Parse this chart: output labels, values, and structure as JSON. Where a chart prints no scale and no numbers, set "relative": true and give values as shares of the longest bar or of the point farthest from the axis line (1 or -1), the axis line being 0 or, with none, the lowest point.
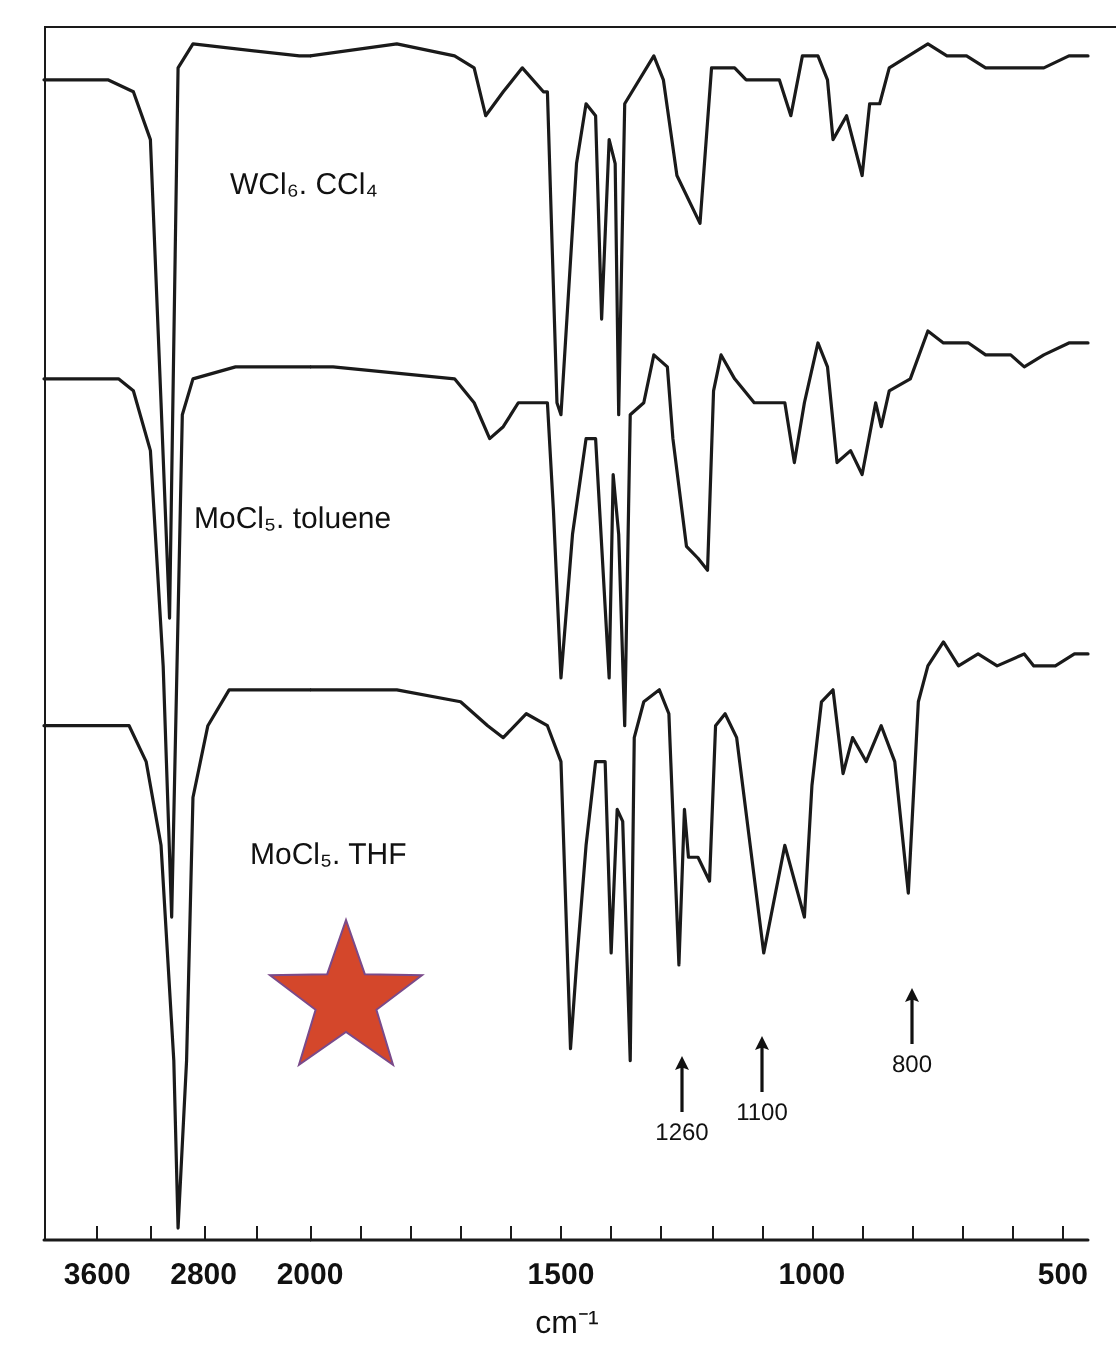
{
  "chart_data": [
    {
      "type": "line",
      "relative": true,
      "marker": "none",
      "xlim": [
        4000,
        2000
      ],
      "xticks": [
        3600,
        {
          "value": 3200,
          "label": null
        },
        2800,
        {
          "value": 2400,
          "label": null
        },
        2000
      ],
      "series": [
        {
          "name": "WCl₆. CCl₄",
          "color": "#1a1a1a",
          "x": [
            4000,
            3520,
            3328,
            3200,
            3120,
            3056,
            2992,
            2880,
            2080,
            2000
          ],
          "values": [
            0.97,
            0.97,
            0.96,
            0.92,
            0.7,
            0.52,
            0.98,
            1.0,
            0.99,
            0.99
          ]
        },
        {
          "name": "MoCl₅. toluene",
          "color": "#1a1a1a",
          "x": [
            4000,
            3792,
            3440,
            3328,
            3200,
            3104,
            3040,
            2960,
            2880,
            2560,
            2000
          ],
          "values": [
            0.72,
            0.72,
            0.72,
            0.71,
            0.66,
            0.48,
            0.27,
            0.69,
            0.72,
            0.73,
            0.73
          ]
        },
        {
          "name": "MoCl₅. THF",
          "color": "#1a1a1a",
          "x": [
            4000,
            3360,
            3232,
            3120,
            3024,
            2992,
            2928,
            2880,
            2768,
            2608,
            2000
          ],
          "values": [
            0.43,
            0.43,
            0.4,
            0.33,
            0.15,
            0.01,
            0.15,
            0.37,
            0.43,
            0.46,
            0.46
          ]
        }
      ]
    },
    {
      "type": "line",
      "relative": true,
      "marker": "none",
      "xlim": [
        2000,
        450
      ],
      "xlabel": "cm⁻¹",
      "xticks": [
        {
          "value": 1900,
          "label": null
        },
        {
          "value": 1800,
          "label": null
        },
        {
          "value": 1700,
          "label": null
        },
        {
          "value": 1600,
          "label": null
        },
        1500,
        {
          "value": 1400,
          "label": null
        },
        {
          "value": 1300,
          "label": null
        },
        {
          "value": 1200,
          "label": null
        },
        {
          "value": 1100,
          "label": null
        },
        1000,
        {
          "value": 900,
          "label": null
        },
        {
          "value": 800,
          "label": null
        },
        {
          "value": 700,
          "label": null
        },
        {
          "value": 600,
          "label": null
        },
        500
      ],
      "series": [
        {
          "color": "#1a1a1a",
          "x": [
            2000,
            1827,
            1712,
            1673,
            1650,
            1615,
            1577,
            1535,
            1527,
            1508,
            1500,
            1469,
            1450,
            1431,
            1419,
            1404,
            1392,
            1385,
            1373,
            1315,
            1296,
            1269,
            1223,
            1200,
            1154,
            1131,
            1065,
            1042,
            1019,
            988,
            969,
            958,
            931,
            900,
            885,
            865,
            846,
            769,
            731,
            692,
            654,
            615,
            538,
            488,
            450
          ],
          "values": [
            0.99,
            1.0,
            0.99,
            0.98,
            0.94,
            0.96,
            0.98,
            0.96,
            0.96,
            0.7,
            0.69,
            0.9,
            0.95,
            0.94,
            0.77,
            0.92,
            0.9,
            0.69,
            0.95,
            0.99,
            0.97,
            0.89,
            0.85,
            0.98,
            0.98,
            0.97,
            0.97,
            0.94,
            0.99,
            0.99,
            0.97,
            0.92,
            0.94,
            0.89,
            0.95,
            0.95,
            0.98,
            1.0,
            0.99,
            0.99,
            0.98,
            0.98,
            0.98,
            0.99,
            0.99
          ]
        },
        {
          "color": "#1a1a1a",
          "x": [
            2000,
            1954,
            1712,
            1673,
            1642,
            1615,
            1585,
            1527,
            1515,
            1500,
            1477,
            1450,
            1431,
            1404,
            1396,
            1385,
            1373,
            1362,
            1335,
            1315,
            1288,
            1277,
            1250,
            1227,
            1208,
            1196,
            1181,
            1154,
            1115,
            1054,
            1035,
            1015,
            988,
            969,
            950,
            923,
            900,
            873,
            862,
            846,
            804,
            769,
            738,
            688,
            654,
            604,
            577,
            538,
            488,
            450
          ],
          "values": [
            0.73,
            0.73,
            0.72,
            0.7,
            0.67,
            0.68,
            0.7,
            0.7,
            0.61,
            0.47,
            0.59,
            0.67,
            0.67,
            0.47,
            0.64,
            0.59,
            0.43,
            0.69,
            0.7,
            0.74,
            0.73,
            0.67,
            0.58,
            0.57,
            0.56,
            0.71,
            0.74,
            0.72,
            0.7,
            0.7,
            0.65,
            0.7,
            0.75,
            0.73,
            0.65,
            0.66,
            0.64,
            0.7,
            0.68,
            0.71,
            0.72,
            0.76,
            0.75,
            0.75,
            0.74,
            0.74,
            0.73,
            0.74,
            0.75,
            0.75
          ]
        },
        {
          "color": "#1a1a1a",
          "x": [
            2000,
            1827,
            1700,
            1646,
            1615,
            1569,
            1527,
            1500,
            1481,
            1469,
            1450,
            1431,
            1412,
            1400,
            1388,
            1377,
            1362,
            1354,
            1335,
            1304,
            1285,
            1265,
            1254,
            1246,
            1227,
            1204,
            1192,
            1173,
            1150,
            1096,
            1054,
            1015,
            1000,
            981,
            958,
            938,
            919,
            892,
            862,
            835,
            808,
            788,
            769,
            738,
            708,
            669,
            631,
            577,
            558,
            515,
            477,
            450
          ],
          "values": [
            0.46,
            0.46,
            0.45,
            0.43,
            0.42,
            0.44,
            0.43,
            0.4,
            0.16,
            0.23,
            0.33,
            0.4,
            0.4,
            0.24,
            0.36,
            0.35,
            0.15,
            0.42,
            0.45,
            0.46,
            0.44,
            0.23,
            0.36,
            0.32,
            0.32,
            0.3,
            0.43,
            0.44,
            0.42,
            0.24,
            0.33,
            0.27,
            0.38,
            0.45,
            0.46,
            0.39,
            0.42,
            0.4,
            0.43,
            0.4,
            0.29,
            0.45,
            0.48,
            0.5,
            0.48,
            0.49,
            0.48,
            0.49,
            0.48,
            0.48,
            0.49,
            0.49
          ]
        }
      ],
      "annotations": [
        "1260",
        "1100",
        "800"
      ]
    }
  ]
}
